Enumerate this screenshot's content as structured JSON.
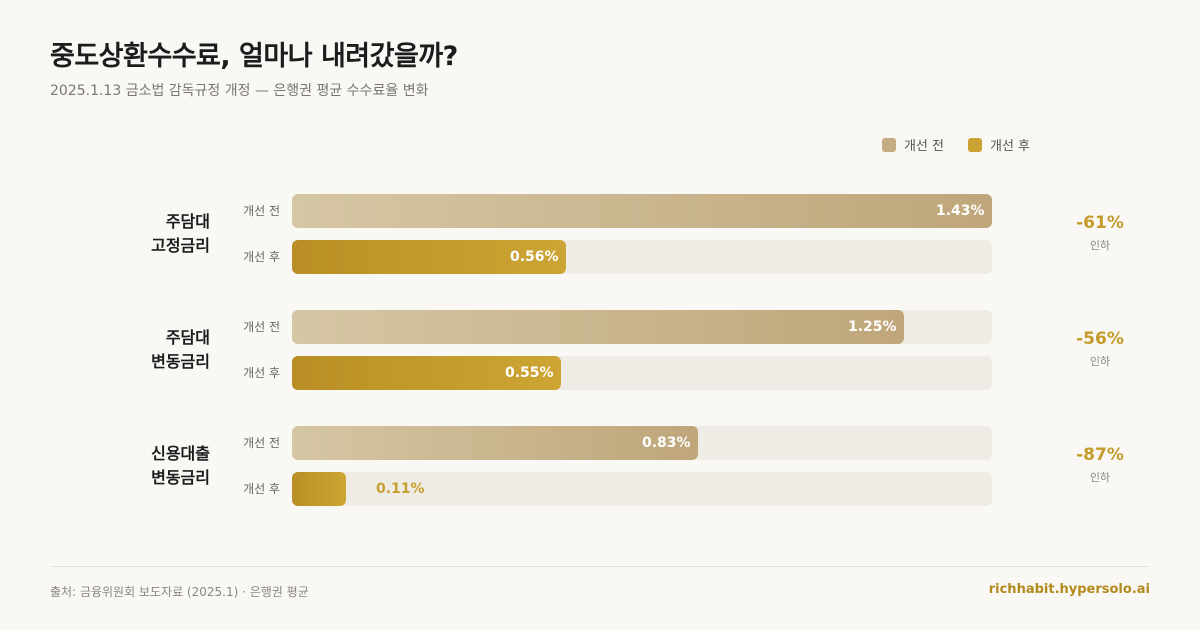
{
  "header": {
    "title": "중도상환수수료, 얼마나 내려갔을까?",
    "subtitle": "2025.1.13 금소법 감독규정 개정 — 은행권 평균 수수료율 변화"
  },
  "legend": [
    {
      "label": "개선 전",
      "color": "#c4ad83"
    },
    {
      "label": "개선 후",
      "color": "#c9a232"
    }
  ],
  "chart_data": {
    "type": "bar",
    "orientation": "horizontal",
    "categories": [
      "주담대\n고정금리",
      "주담대\n변동금리",
      "신용대출\n변동금리"
    ],
    "series": [
      {
        "name": "개선 전",
        "values": [
          1.43,
          1.25,
          0.83
        ]
      },
      {
        "name": "개선 후",
        "values": [
          0.56,
          0.55,
          0.11
        ]
      }
    ],
    "value_labels": {
      "before": [
        "1.43%",
        "1.25%",
        "0.83%"
      ],
      "after": [
        "0.56%",
        "0.55%",
        "0.11%"
      ]
    },
    "row_labels": {
      "before": "개선 전",
      "after": "개선 후"
    },
    "changes": [
      {
        "pct": "-61%",
        "label": "인하"
      },
      {
        "pct": "-56%",
        "label": "인하"
      },
      {
        "pct": "-87%",
        "label": "인하"
      }
    ],
    "xlim": [
      0,
      1.43
    ],
    "legend_position": "top-right",
    "grid": false
  },
  "footer": {
    "source": "출처: 금융위원회 보도자료 (2025.1) · 은행권 평균",
    "site": "richhabit.hypersolo.ai"
  }
}
